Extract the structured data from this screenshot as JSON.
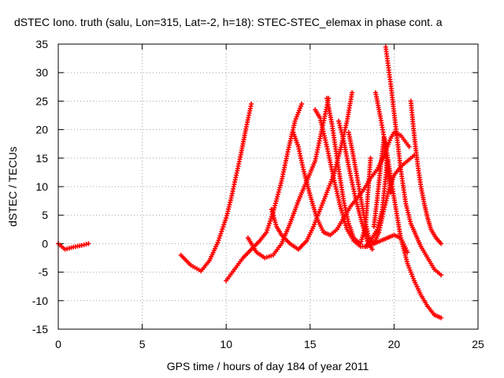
{
  "chart_data": {
    "type": "scatter",
    "title": "dSTEC Iono. truth (salu, Lon=315, Lat=-2, h=18): STEC-STEC_elemax in phase cont. a",
    "xlabel": "GPS time / hours of day 184 of year 2011",
    "ylabel": "dSTEC  / TECUs",
    "xlim": [
      0,
      25
    ],
    "ylim": [
      -15,
      35
    ],
    "xticks": [
      0,
      5,
      10,
      15,
      20,
      25
    ],
    "yticks": [
      -15,
      -10,
      -5,
      0,
      5,
      10,
      15,
      20,
      25,
      30,
      35
    ],
    "grid": true,
    "marker": "+",
    "color": "#ff0000",
    "series": [
      {
        "x": [
          0.0,
          0.4,
          0.9,
          1.4,
          1.8
        ],
        "y": [
          0.0,
          -1.0,
          -0.6,
          -0.3,
          0.0
        ]
      },
      {
        "x": [
          7.3,
          7.9,
          8.5,
          9.0,
          9.5,
          10.0
        ],
        "y": [
          -2.0,
          -3.8,
          -4.8,
          -3.0,
          0.2,
          4.5
        ]
      },
      {
        "x": [
          10.0,
          10.3,
          10.6,
          10.9,
          11.2,
          11.5
        ],
        "y": [
          4.5,
          8.0,
          12.0,
          16.0,
          20.5,
          24.5
        ]
      },
      {
        "x": [
          10.0,
          10.5,
          11.0,
          11.5,
          12.0,
          12.4,
          12.8,
          13.3,
          13.7,
          14.1,
          14.5
        ],
        "y": [
          -6.5,
          -4.5,
          -2.5,
          -1.0,
          0.5,
          2.0,
          5.5,
          11.0,
          16.5,
          21.5,
          24.5
        ]
      },
      {
        "x": [
          11.3,
          11.8,
          12.3,
          12.8,
          13.3,
          13.8,
          14.3,
          14.8,
          15.3,
          15.7,
          16.1
        ],
        "y": [
          1.0,
          -1.5,
          -2.5,
          -2.0,
          0.0,
          3.5,
          7.5,
          11.0,
          14.5,
          20.0,
          25.5
        ]
      },
      {
        "x": [
          12.7,
          13.0,
          13.3,
          13.8,
          14.3,
          14.8,
          15.2,
          15.6,
          16.0,
          16.4,
          16.8,
          17.2,
          17.5
        ],
        "y": [
          6.0,
          3.0,
          1.5,
          0.0,
          -1.0,
          0.5,
          3.0,
          6.0,
          9.0,
          12.0,
          16.5,
          21.5,
          26.5
        ]
      },
      {
        "x": [
          14.0,
          14.3,
          14.6,
          15.0,
          15.4,
          15.8,
          16.2,
          16.6,
          17.0,
          17.4,
          17.8,
          18.2,
          18.6,
          19.0,
          19.4,
          19.8,
          20.0,
          20.4,
          20.9
        ],
        "y": [
          19.5,
          17.0,
          13.0,
          8.5,
          4.5,
          2.0,
          1.5,
          2.5,
          4.5,
          6.5,
          8.0,
          9.5,
          11.5,
          13.0,
          15.5,
          18.5,
          19.5,
          19.0,
          17.0
        ]
      },
      {
        "x": [
          15.3,
          15.6,
          16.0,
          16.4,
          16.8,
          17.2,
          17.6,
          18.0,
          18.4,
          18.8,
          19.2,
          19.6,
          20.0,
          20.4,
          20.8
        ],
        "y": [
          23.5,
          22.0,
          17.0,
          11.5,
          6.5,
          2.5,
          0.5,
          -0.5,
          -0.5,
          0.0,
          0.5,
          1.0,
          1.5,
          1.0,
          -1.5
        ]
      },
      {
        "x": [
          16.0,
          16.3,
          16.6,
          17.0,
          17.3,
          17.6,
          18.0,
          18.3,
          18.6
        ],
        "y": [
          25.5,
          21.0,
          15.0,
          7.5,
          3.5,
          1.0,
          0.0,
          3.0,
          15.0
        ]
      },
      {
        "x": [
          16.7,
          17.0,
          17.3,
          17.7,
          18.1,
          18.4,
          18.7
        ],
        "y": [
          21.5,
          18.0,
          13.5,
          8.0,
          3.5,
          0.5,
          -1.0
        ]
      },
      {
        "x": [
          17.3,
          17.6,
          17.9,
          18.2,
          18.5,
          18.8,
          19.1,
          19.4,
          19.7,
          20.0,
          20.4,
          20.8,
          21.2
        ],
        "y": [
          19.5,
          15.0,
          10.0,
          5.0,
          1.0,
          0.0,
          2.0,
          6.0,
          9.5,
          12.0,
          13.5,
          14.5,
          15.5
        ]
      },
      {
        "x": [
          18.3,
          18.6,
          19.0,
          19.3,
          19.6
        ],
        "y": [
          -0.5,
          0.5,
          2.5,
          6.0,
          14.5
        ]
      },
      {
        "x": [
          18.8,
          19.0,
          19.2,
          19.4,
          19.6,
          19.8
        ],
        "y": [
          3.0,
          8.0,
          13.5,
          18.5,
          13.0,
          9.0
        ]
      },
      {
        "x": [
          18.9,
          19.2,
          19.6,
          20.0,
          20.4,
          20.8,
          21.2,
          21.6,
          22.0,
          22.4,
          22.8
        ],
        "y": [
          26.5,
          22.0,
          15.5,
          8.0,
          1.0,
          -3.5,
          -6.5,
          -9.0,
          -11.0,
          -12.5,
          -13.0
        ]
      },
      {
        "x": [
          19.5,
          19.8,
          20.1,
          20.4,
          20.7,
          21.0,
          21.3,
          21.6,
          22.0,
          22.4,
          22.8
        ],
        "y": [
          34.5,
          28.0,
          20.5,
          13.0,
          7.0,
          3.5,
          1.5,
          -0.5,
          -2.5,
          -4.5,
          -5.5
        ]
      },
      {
        "x": [
          21.0,
          21.2,
          21.4,
          21.6,
          21.8,
          22.0,
          22.2,
          22.5,
          22.8
        ],
        "y": [
          25.0,
          19.0,
          14.0,
          10.0,
          7.0,
          4.5,
          2.5,
          1.0,
          0.0
        ]
      }
    ]
  }
}
